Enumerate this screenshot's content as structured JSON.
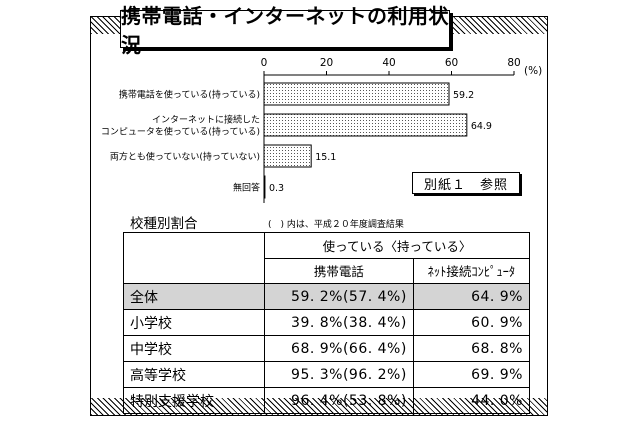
{
  "title": "携帯電話・インターネットの利用状況",
  "chart_data": {
    "type": "bar",
    "orientation": "horizontal",
    "categories": [
      [
        "携帯電話を使っている(持っている)"
      ],
      [
        "インターネットに接続した",
        "コンピュータを使っている(持っている)"
      ],
      [
        "両方とも使っていない(持っていない)"
      ],
      [
        "無回答"
      ]
    ],
    "values": [
      59.2,
      64.9,
      15.1,
      0.3
    ],
    "value_labels": [
      "59.2",
      "64.9",
      "15.1",
      "0.3"
    ],
    "xlim": [
      0,
      80
    ],
    "ticks": [
      "0",
      "20",
      "40",
      "60",
      "80"
    ],
    "unit": "(%)",
    "fill": "dotted"
  },
  "note_box": "別紙１　参照",
  "subtitle": "校種別割合",
  "footnote": "(　) 内は、平成２０年度調査結果",
  "table": {
    "group_header": "使っている〈持っている〉",
    "col_headers": [
      "携帯電話",
      "ﾈｯﾄ接続ｺﾝﾋﾟｭｰﾀ"
    ],
    "rows": [
      {
        "name": "全体",
        "mobile": "59. 2%(57. 4%)",
        "pc": "64. 9%"
      },
      {
        "name": "小学校",
        "mobile": "39. 8%(38. 4%)",
        "pc": "60. 9%"
      },
      {
        "name": "中学校",
        "mobile": "68. 9%(66. 4%)",
        "pc": "68. 8%"
      },
      {
        "name": "高等学校",
        "mobile": "95. 3%(96. 2%)",
        "pc": "69. 9%"
      },
      {
        "name": "特別支援学校",
        "mobile": "96. 4%(53. 8%)",
        "pc": "44. 0%"
      }
    ]
  }
}
